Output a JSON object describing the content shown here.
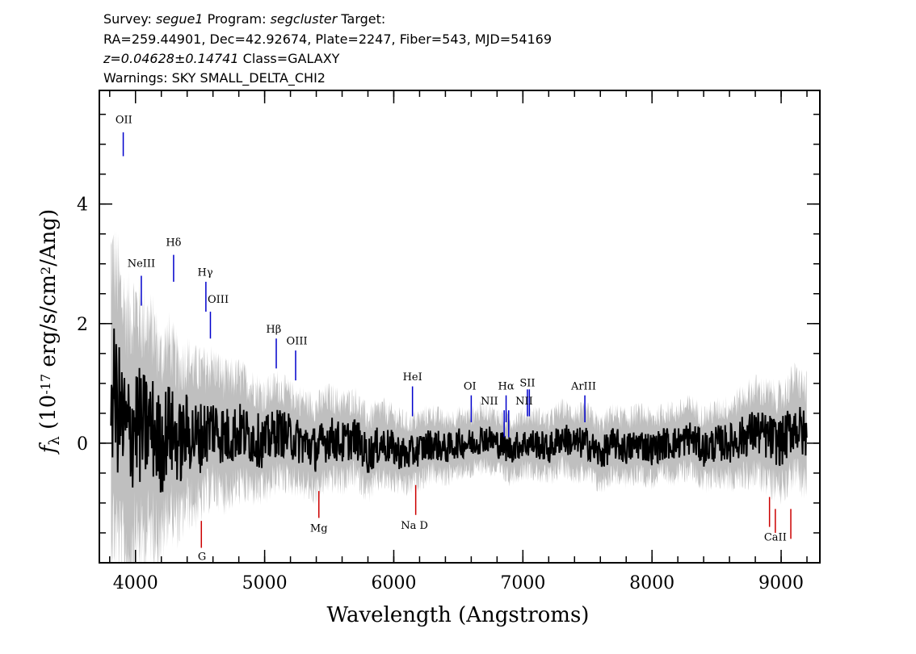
{
  "header": {
    "survey_label": "Survey:",
    "survey": "segue1",
    "program_label": "Program:",
    "program": "segcluster",
    "target_label": "Target:",
    "line2": "RA=259.44901, Dec=42.92674, Plate=2247, Fiber=543, MJD=54169",
    "z_value": "z=0.04628±0.14741",
    "class_text": "Class=GALAXY",
    "warnings": "Warnings: SKY SMALL_DELTA_CHI2"
  },
  "chart_data": {
    "type": "line",
    "title": "",
    "xlabel": "Wavelength (Angstroms)",
    "ylabel": "f_λ (10^-17 erg/s/cm^2/Ang)",
    "xlim": [
      3720,
      9300
    ],
    "ylim": [
      -2.0,
      5.9
    ],
    "x_ticks": [
      4000,
      5000,
      6000,
      7000,
      8000,
      9000
    ],
    "y_ticks": [
      0,
      2,
      4
    ],
    "x_minor_step": 200,
    "y_minor_step": 0.5,
    "colors": {
      "spectrum": "#000000",
      "noise": "#bfbfbf",
      "emission": "#0000cc",
      "absorption": "#cc0000"
    },
    "series": [
      {
        "style": "black-spectrum",
        "x": [
          3810,
          3850,
          3900,
          3950,
          4000,
          4050,
          4100,
          4150,
          4200,
          4250,
          4300,
          4350,
          4400,
          4450,
          4500,
          4550,
          4600,
          4650,
          4700,
          4800,
          4900,
          5000,
          5100,
          5200,
          5300,
          5400,
          5500,
          5600,
          5700,
          5800,
          5900,
          6000,
          6100,
          6200,
          6300,
          6400,
          6500,
          6600,
          6700,
          6800,
          6900,
          7000,
          7100,
          7200,
          7300,
          7400,
          7500,
          7600,
          7700,
          7800,
          7900,
          8000,
          8100,
          8200,
          8300,
          8400,
          8500,
          8600,
          8700,
          8800,
          8900,
          9000,
          9100,
          9200
        ],
        "y": [
          0.9,
          0.7,
          0.3,
          0.1,
          0.4,
          0.2,
          0.3,
          0.2,
          -0.1,
          0.3,
          0.1,
          0.0,
          0.2,
          0.1,
          0.1,
          0.2,
          0.3,
          0.2,
          0.1,
          0.2,
          0.1,
          0.0,
          0.2,
          0.1,
          0.0,
          -0.1,
          0.1,
          0.0,
          0.1,
          -0.2,
          0.0,
          -0.1,
          -0.2,
          -0.1,
          0.0,
          -0.1,
          0.0,
          0.0,
          0.1,
          0.0,
          -0.1,
          0.0,
          0.0,
          -0.1,
          0.1,
          0.0,
          0.0,
          -0.2,
          0.0,
          -0.1,
          0.0,
          -0.1,
          0.0,
          0.0,
          0.1,
          -0.1,
          0.0,
          0.0,
          0.1,
          0.2,
          0.1,
          0.0,
          0.3,
          0.1
        ]
      },
      {
        "style": "grey-noise-halfwidth",
        "x": [
          3810,
          4000,
          4200,
          4400,
          4600,
          4800,
          5000,
          5200,
          5400,
          5600,
          6000,
          6500,
          7000,
          7500,
          8000,
          8500,
          8800,
          9000,
          9200
        ],
        "y": [
          2.2,
          1.9,
          1.5,
          1.2,
          1.0,
          0.9,
          0.8,
          0.7,
          0.7,
          0.65,
          0.55,
          0.45,
          0.45,
          0.5,
          0.5,
          0.55,
          0.7,
          0.75,
          0.8
        ]
      }
    ],
    "emission_lines": [
      {
        "label": "OII",
        "wave": 3905,
        "y1": 5.2,
        "y2": 4.8
      },
      {
        "label": "NeIII",
        "wave": 4045,
        "y1": 2.8,
        "y2": 2.3
      },
      {
        "label": "Hδ",
        "wave": 4295,
        "y1": 3.15,
        "y2": 2.7
      },
      {
        "label": "Hγ",
        "wave": 4545,
        "y1": 2.7,
        "y2": 2.2
      },
      {
        "label": "OIII",
        "wave": 4580,
        "y1": 2.2,
        "y2": 1.75
      },
      {
        "label": "Hβ",
        "wave": 5090,
        "y1": 1.75,
        "y2": 1.25
      },
      {
        "label": "OIII",
        "wave": 5240,
        "y1": 1.55,
        "y2": 1.05
      },
      {
        "label": "HeI",
        "wave": 6145,
        "y1": 0.95,
        "y2": 0.45
      },
      {
        "label": "OI",
        "wave": 6600,
        "y1": 0.8,
        "y2": 0.35
      },
      {
        "label": "NII",
        "wave": 6855,
        "y1": 0.55,
        "y2": 0.1
      },
      {
        "label": "Hα",
        "wave": 6870,
        "y1": 0.8,
        "y2": 0.35
      },
      {
        "label": "NII",
        "wave": 6890,
        "y1": 0.55,
        "y2": 0.1
      },
      {
        "label": "SII",
        "wave": 7035,
        "y1": 0.9,
        "y2": 0.45
      },
      {
        "label": "SII",
        "wave": 7050,
        "y1": 0.9,
        "y2": 0.45
      },
      {
        "label": "ArIII",
        "wave": 7480,
        "y1": 0.8,
        "y2": 0.35
      }
    ],
    "absorption_lines": [
      {
        "label": "G",
        "wave": 4510,
        "y1": -1.3,
        "y2": -1.75
      },
      {
        "label": "Mg",
        "wave": 5420,
        "y1": -0.8,
        "y2": -1.25
      },
      {
        "label": "Na D",
        "wave": 6170,
        "y1": -0.7,
        "y2": -1.2
      },
      {
        "label": "CaII",
        "wave": 8910,
        "y1": -0.9,
        "y2": -1.4
      },
      {
        "label": "CaII",
        "wave": 8955,
        "y1": -1.1,
        "y2": -1.5
      },
      {
        "label": "CaII",
        "wave": 9075,
        "y1": -1.1,
        "y2": -1.6
      }
    ],
    "line_label_text": {
      "emission": [
        {
          "text": "OII",
          "wave": 3910,
          "y": 5.35
        },
        {
          "text": "NeIII",
          "wave": 4045,
          "y": 2.95
        },
        {
          "text": "Hδ",
          "wave": 4295,
          "y": 3.3
        },
        {
          "text": "Hγ",
          "wave": 4540,
          "y": 2.8
        },
        {
          "text": "OIII",
          "wave": 4640,
          "y": 2.35
        },
        {
          "text": "Hβ",
          "wave": 5070,
          "y": 1.85
        },
        {
          "text": "OIII",
          "wave": 5250,
          "y": 1.65
        },
        {
          "text": "HeI",
          "wave": 6145,
          "y": 1.05
        },
        {
          "text": "OI",
          "wave": 6590,
          "y": 0.9
        },
        {
          "text": "NII",
          "wave": 6740,
          "y": 0.65
        },
        {
          "text": "Hα",
          "wave": 6870,
          "y": 0.9
        },
        {
          "text": "SII",
          "wave": 7035,
          "y": 0.95
        },
        {
          "text": "NII",
          "wave": 7010,
          "y": 0.65
        },
        {
          "text": "ArIII",
          "wave": 7470,
          "y": 0.9
        }
      ],
      "absorption": [
        {
          "text": "G",
          "wave": 4515,
          "y": -1.95
        },
        {
          "text": "Mg",
          "wave": 5420,
          "y": -1.48
        },
        {
          "text": "Na D",
          "wave": 6160,
          "y": -1.43
        },
        {
          "text": "CaII",
          "wave": 8955,
          "y": -1.63
        }
      ]
    }
  }
}
